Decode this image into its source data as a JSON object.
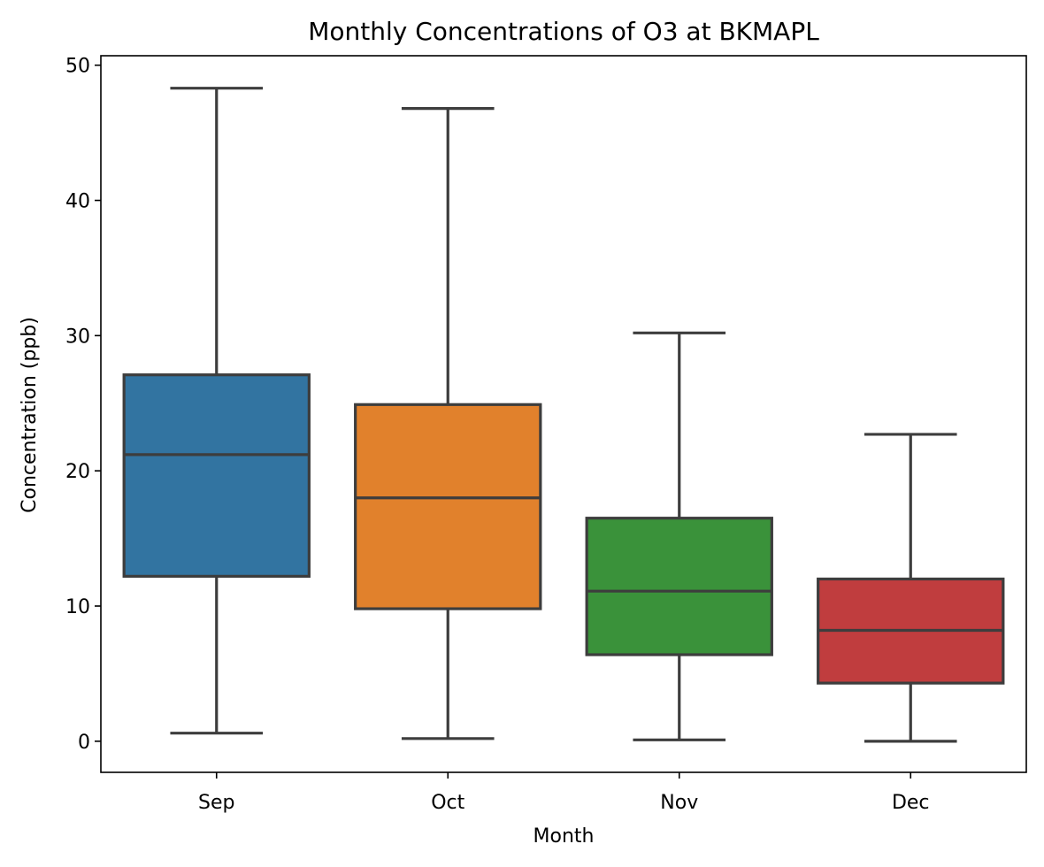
{
  "chart_data": {
    "type": "box",
    "title": "Monthly Concentrations of O3 at BKMAPL",
    "xlabel": "Month",
    "ylabel": "Concentration (ppb)",
    "ylim": [
      -2.3,
      50.7
    ],
    "yticks": [
      0,
      10,
      20,
      30,
      40,
      50
    ],
    "grid": false,
    "categories": [
      "Sep",
      "Oct",
      "Nov",
      "Dec"
    ],
    "boxes": [
      {
        "category": "Sep",
        "whisker_low": 0.6,
        "q1": 12.2,
        "median": 21.2,
        "q3": 27.1,
        "whisker_high": 48.3,
        "color": "#3274a1"
      },
      {
        "category": "Oct",
        "whisker_low": 0.2,
        "q1": 9.8,
        "median": 18.0,
        "q3": 24.9,
        "whisker_high": 46.8,
        "color": "#e1812c"
      },
      {
        "category": "Nov",
        "whisker_low": 0.1,
        "q1": 6.4,
        "median": 11.1,
        "q3": 16.5,
        "whisker_high": 30.2,
        "color": "#3a923a"
      },
      {
        "category": "Dec",
        "whisker_low": 0.0,
        "q1": 4.3,
        "median": 8.2,
        "q3": 12.0,
        "whisker_high": 22.7,
        "color": "#c03d3e"
      }
    ],
    "line_color": "#3d3d3d"
  }
}
